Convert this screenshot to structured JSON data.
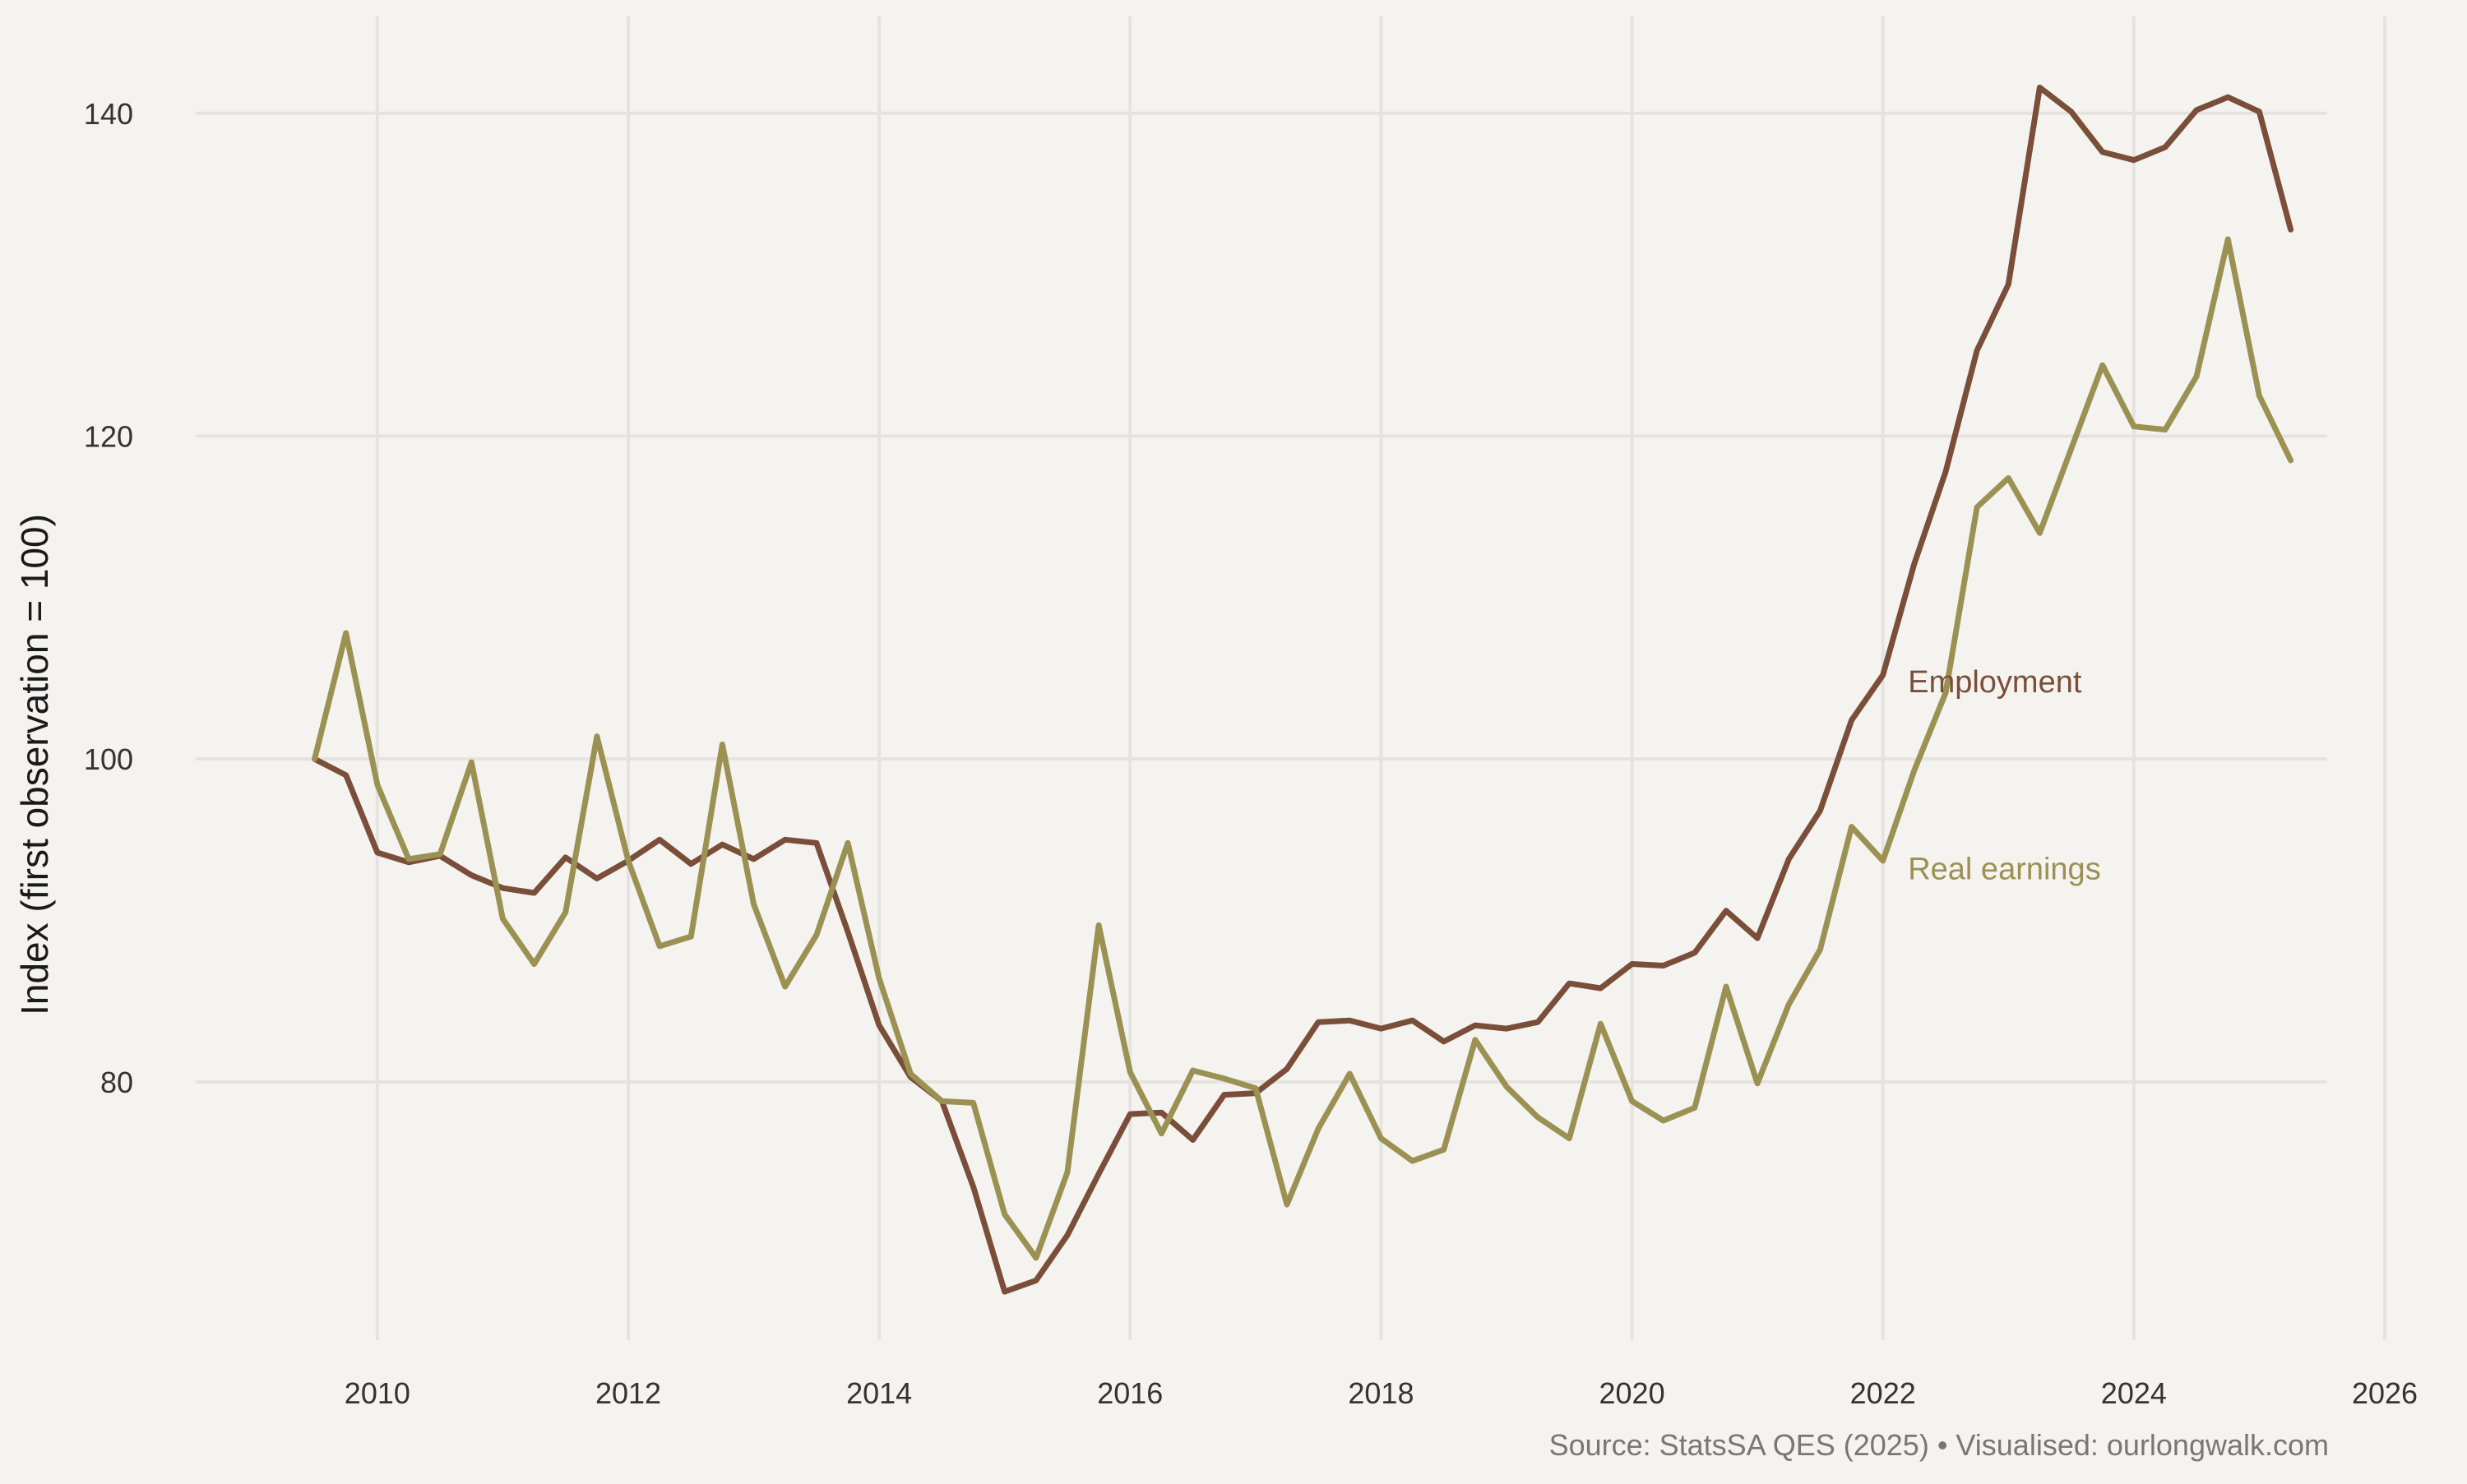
{
  "chart_data": {
    "type": "line",
    "title": "",
    "xlabel": "",
    "ylabel": "Index (first observation = 100)",
    "xlim": [
      2008.5,
      2026
    ],
    "ylim": [
      64,
      146
    ],
    "xticks": [
      2010,
      2012,
      2014,
      2016,
      2018,
      2020,
      2022,
      2024,
      2026
    ],
    "yticks": [
      80,
      100,
      120,
      140
    ],
    "grid": true,
    "legend": "inline labels",
    "source": "Source: StatsSA QES (2025) • Visualised: ourlongwalk.com",
    "series": [
      {
        "name": "Employment",
        "label": "Employment",
        "label_anchor": {
          "x": 2022.2,
          "y": 104.8
        },
        "color": "#7a4e38",
        "x": [
          2009.5,
          2009.75,
          2010.0,
          2010.25,
          2010.5,
          2010.75,
          2011.0,
          2011.25,
          2011.5,
          2011.75,
          2012.0,
          2012.25,
          2012.5,
          2012.75,
          2013.0,
          2013.25,
          2013.5,
          2013.75,
          2014.0,
          2014.25,
          2014.5,
          2014.75,
          2015.0,
          2015.25,
          2015.5,
          2015.75,
          2016.0,
          2016.25,
          2016.5,
          2016.75,
          2017.0,
          2017.25,
          2017.5,
          2017.75,
          2018.0,
          2018.25,
          2018.5,
          2018.75,
          2019.0,
          2019.25,
          2019.5,
          2019.75,
          2020.0,
          2020.25,
          2020.5,
          2020.75,
          2021.0,
          2021.25,
          2021.5,
          2021.75,
          2022.0,
          2022.25,
          2022.5,
          2022.75,
          2023.0,
          2023.25,
          2023.5,
          2023.75,
          2024.0,
          2024.25,
          2024.5,
          2024.75,
          2025.0,
          2025.25
        ],
        "values": [
          100.0,
          99.0,
          94.2,
          93.6,
          94.0,
          92.8,
          92.0,
          91.7,
          93.9,
          92.6,
          93.7,
          95.0,
          93.5,
          94.7,
          93.8,
          95.0,
          94.8,
          89.3,
          83.5,
          80.3,
          78.8,
          73.5,
          67.0,
          67.7,
          70.5,
          74.3,
          78.0,
          78.1,
          76.4,
          79.2,
          79.3,
          80.8,
          83.7,
          83.8,
          83.3,
          83.8,
          82.5,
          83.5,
          83.3,
          83.7,
          86.1,
          85.8,
          87.3,
          87.2,
          88.0,
          90.6,
          88.9,
          93.8,
          96.8,
          102.4,
          105.2,
          112.1,
          117.8,
          125.3,
          129.4,
          141.6,
          140.1,
          137.6,
          137.1,
          137.9,
          140.2,
          141.0,
          140.1,
          132.8
        ]
      },
      {
        "name": "Real earnings",
        "label": "Real earnings",
        "label_anchor": {
          "x": 2022.2,
          "y": 93.2
        },
        "color": "#9b9152",
        "x": [
          2009.5,
          2009.75,
          2010.0,
          2010.25,
          2010.5,
          2010.75,
          2011.0,
          2011.25,
          2011.5,
          2011.75,
          2012.0,
          2012.25,
          2012.5,
          2012.75,
          2013.0,
          2013.25,
          2013.5,
          2013.75,
          2014.0,
          2014.25,
          2014.5,
          2014.75,
          2015.0,
          2015.25,
          2015.5,
          2015.75,
          2016.0,
          2016.25,
          2016.5,
          2016.75,
          2017.0,
          2017.25,
          2017.5,
          2017.75,
          2018.0,
          2018.25,
          2018.5,
          2018.75,
          2019.0,
          2019.25,
          2019.5,
          2019.75,
          2020.0,
          2020.25,
          2020.5,
          2020.75,
          2021.0,
          2021.25,
          2021.5,
          2021.75,
          2022.0,
          2022.25,
          2022.5,
          2022.75,
          2023.0,
          2023.25,
          2023.5,
          2023.75,
          2024.0,
          2024.25,
          2024.5,
          2024.75,
          2025.0,
          2025.25
        ],
        "values": [
          100.0,
          107.8,
          98.4,
          93.8,
          94.1,
          99.8,
          90.1,
          87.3,
          90.5,
          101.4,
          93.7,
          88.4,
          89.0,
          100.9,
          91.0,
          85.9,
          89.1,
          94.8,
          86.4,
          80.5,
          78.8,
          78.7,
          71.8,
          69.1,
          74.4,
          89.7,
          80.6,
          76.8,
          80.7,
          80.2,
          79.6,
          72.4,
          77.1,
          80.5,
          76.5,
          75.1,
          75.8,
          82.6,
          79.7,
          77.8,
          76.5,
          83.6,
          78.8,
          77.6,
          78.4,
          85.9,
          79.9,
          84.8,
          88.2,
          95.8,
          93.7,
          99.3,
          104.1,
          115.6,
          117.4,
          114.0,
          119.2,
          124.4,
          120.6,
          120.4,
          123.7,
          132.2,
          122.5,
          118.5
        ]
      }
    ]
  }
}
